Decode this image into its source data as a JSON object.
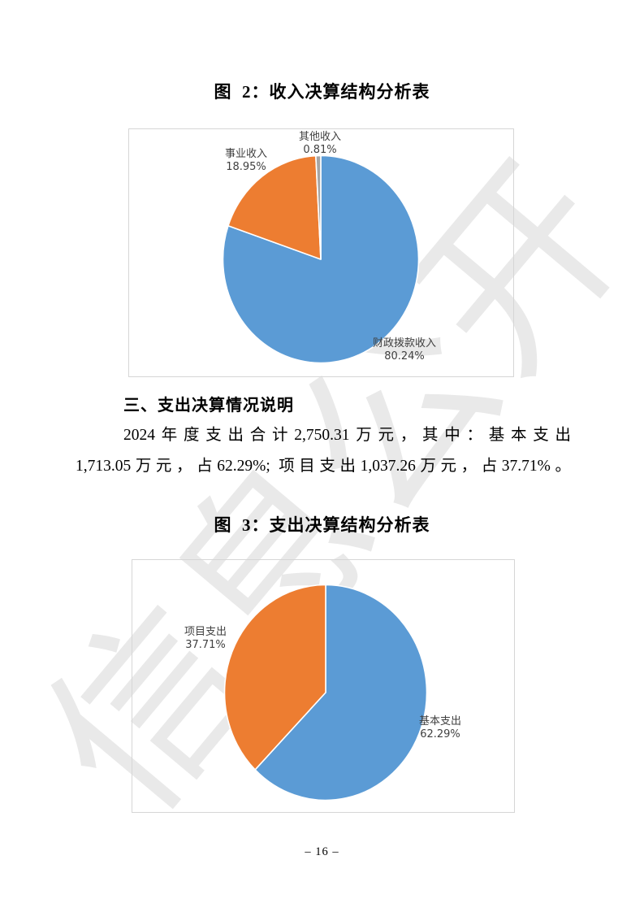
{
  "page": {
    "watermark_text": "信息公开",
    "number_label": "– 16 –"
  },
  "figures": {
    "figure2_title": "图  2：收入决算结构分析表",
    "figure3_title": "图  3：支出决算结构分析表"
  },
  "section": {
    "heading": "三、支出决算情况说明",
    "lines": [
      "2024年度支出合计2,750.31万元，其中：基本支出",
      "1,713.05万元，占62.29%; 项目支出1,037.26万元，占37.71%。"
    ]
  },
  "chart_data": [
    {
      "type": "pie",
      "title": "图 2：收入决算结构分析表",
      "labels": [
        "财政拨款收入",
        "事业收入",
        "其他收入"
      ],
      "values": [
        80.24,
        18.95,
        0.81
      ],
      "pct_labels": [
        "80.24%",
        "18.95%",
        "0.81%"
      ],
      "colors": [
        "#5B9BD5",
        "#ED7D31",
        "#A5A5A5"
      ],
      "start_angle_deg": 0,
      "direction": "clockwise",
      "legend": "none",
      "label_position": "outside"
    },
    {
      "type": "pie",
      "title": "图 3：支出决算结构分析表",
      "labels": [
        "基本支出",
        "项目支出"
      ],
      "values": [
        62.29,
        37.71
      ],
      "pct_labels": [
        "62.29%",
        "37.71%"
      ],
      "colors": [
        "#5B9BD5",
        "#ED7D31"
      ],
      "start_angle_deg": 0,
      "direction": "clockwise",
      "legend": "none",
      "label_position": "outside"
    }
  ]
}
